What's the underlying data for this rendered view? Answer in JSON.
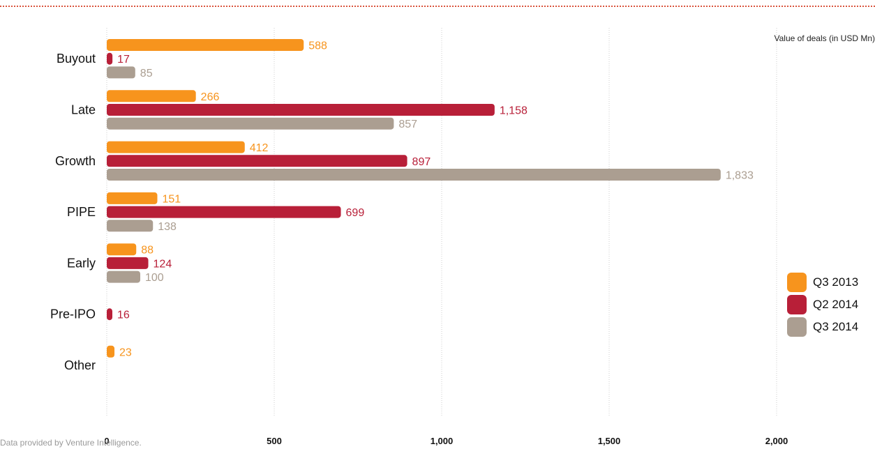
{
  "unit_label": "Value of deals (in USD Mn)",
  "source_note": "Data provided by Venture Intelligence.",
  "colors": {
    "q3_2013": "#f7941d",
    "q2_2014": "#b81f38",
    "q3_2014": "#ab9e91",
    "gridline": "#cccccc"
  },
  "legend": [
    {
      "label": "Q3 2013",
      "color": "#f7941d"
    },
    {
      "label": "Q2 2014",
      "color": "#b81f38"
    },
    {
      "label": "Q3 2014",
      "color": "#ab9e91"
    }
  ],
  "chart_data": {
    "type": "bar",
    "orientation": "horizontal",
    "categories": [
      "Buyout",
      "Late",
      "Growth",
      "PIPE",
      "Early",
      "Pre-IPO",
      "Other"
    ],
    "series": [
      {
        "name": "Q3 2013",
        "color": "#f7941d",
        "values": [
          588,
          266,
          412,
          151,
          88,
          null,
          23
        ],
        "labels": [
          "588",
          "266",
          "412",
          "151",
          "88",
          "",
          "23"
        ]
      },
      {
        "name": "Q2 2014",
        "color": "#b81f38",
        "values": [
          17,
          1158,
          897,
          699,
          124,
          16,
          null
        ],
        "labels": [
          "17",
          "1,158",
          "897",
          "699",
          "124",
          "16",
          ""
        ]
      },
      {
        "name": "Q3 2014",
        "color": "#ab9e91",
        "values": [
          85,
          857,
          1833,
          138,
          100,
          null,
          null
        ],
        "labels": [
          "85",
          "857",
          "1,833",
          "138",
          "100",
          "",
          ""
        ]
      }
    ],
    "x_ticks": [
      0,
      500,
      1000,
      1500,
      2000
    ],
    "x_tick_labels": [
      "0",
      "500",
      "1,000",
      "1,500",
      "2,000"
    ],
    "xlim": [
      0,
      2000
    ],
    "grid": true,
    "legend_position": "right"
  }
}
